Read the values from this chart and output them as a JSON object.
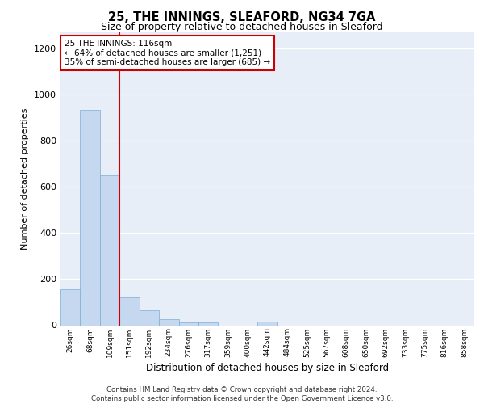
{
  "title1": "25, THE INNINGS, SLEAFORD, NG34 7GA",
  "title2": "Size of property relative to detached houses in Sleaford",
  "xlabel": "Distribution of detached houses by size in Sleaford",
  "ylabel": "Number of detached properties",
  "categories": [
    "26sqm",
    "68sqm",
    "109sqm",
    "151sqm",
    "192sqm",
    "234sqm",
    "276sqm",
    "317sqm",
    "359sqm",
    "400sqm",
    "442sqm",
    "484sqm",
    "525sqm",
    "567sqm",
    "608sqm",
    "650sqm",
    "692sqm",
    "733sqm",
    "775sqm",
    "816sqm",
    "858sqm"
  ],
  "values": [
    155,
    935,
    650,
    120,
    65,
    28,
    12,
    12,
    0,
    0,
    15,
    0,
    0,
    0,
    0,
    0,
    0,
    0,
    0,
    0,
    0
  ],
  "bar_color": "#c5d8f0",
  "bar_edgecolor": "#7aadd4",
  "vline_x": 2.5,
  "vline_color": "#cc0000",
  "annotation_text": "25 THE INNINGS: 116sqm\n← 64% of detached houses are smaller (1,251)\n35% of semi-detached houses are larger (685) →",
  "annotation_box_facecolor": "#ffffff",
  "annotation_box_edgecolor": "#cc0000",
  "ylim": [
    0,
    1270
  ],
  "yticks": [
    0,
    200,
    400,
    600,
    800,
    1000,
    1200
  ],
  "footer": "Contains HM Land Registry data © Crown copyright and database right 2024.\nContains public sector information licensed under the Open Government Licence v3.0.",
  "bg_color": "#e8eef8",
  "fig_bg_color": "#ffffff",
  "grid_color": "#ffffff"
}
